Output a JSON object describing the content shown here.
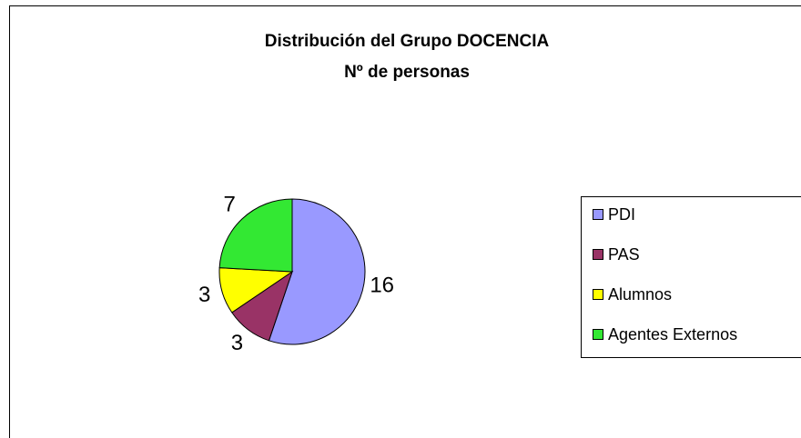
{
  "chart_data": {
    "type": "pie",
    "title": "Distribución del Grupo DOCENCIA",
    "subtitle": "Nº de personas",
    "categories": [
      "PDI",
      "PAS",
      "Alumnos",
      "Agentes Externos"
    ],
    "values": [
      16,
      3,
      3,
      7
    ],
    "colors": [
      "#9999ff",
      "#993366",
      "#ffff00",
      "#33e833"
    ],
    "legend": "right"
  }
}
